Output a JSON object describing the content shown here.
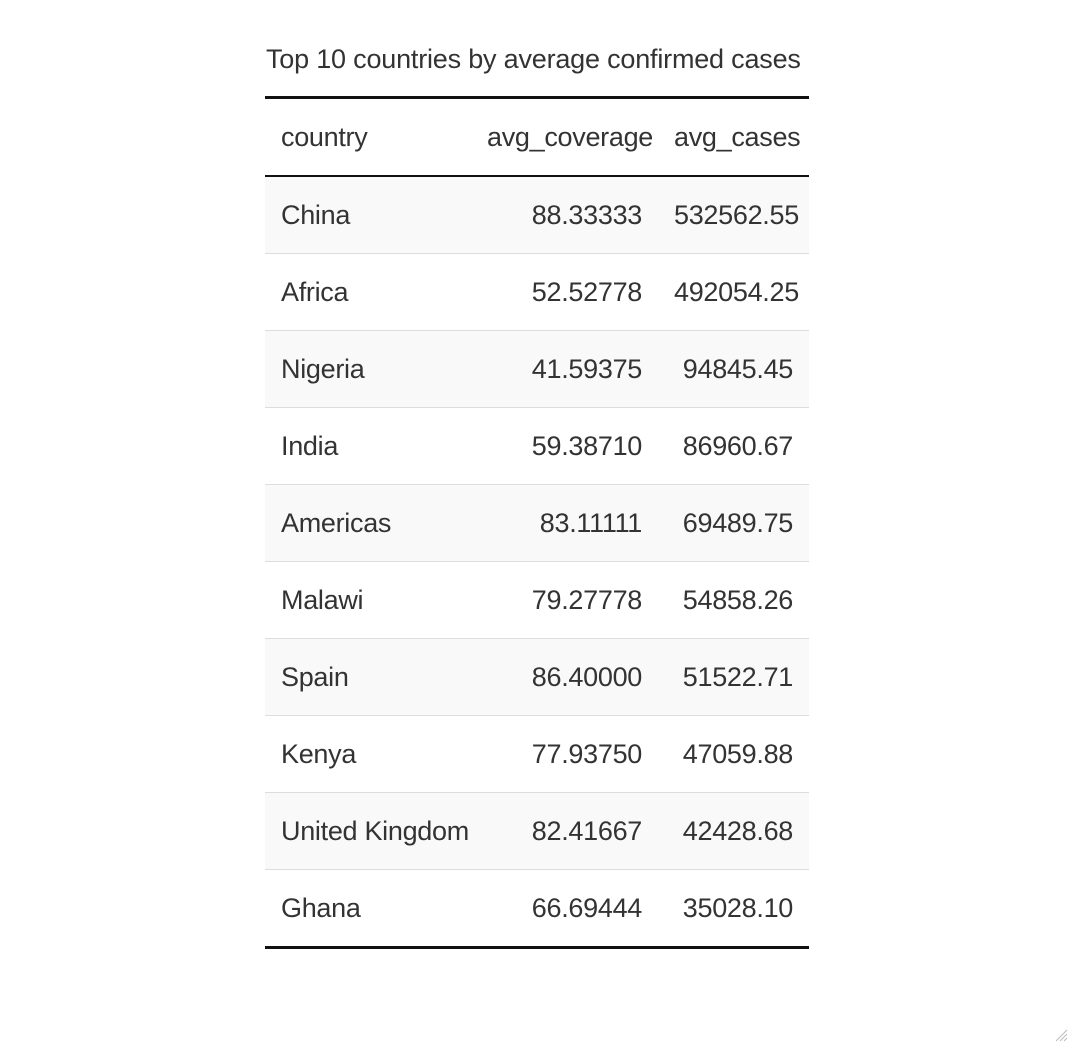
{
  "table": {
    "caption": "Top 10 countries by average confirmed cases",
    "columns": [
      "country",
      "avg_coverage",
      "avg_cases"
    ],
    "rows": [
      [
        "China",
        "88.33333",
        "532562.55"
      ],
      [
        "Africa",
        "52.52778",
        "492054.25"
      ],
      [
        "Nigeria",
        "41.59375",
        "94845.45"
      ],
      [
        "India",
        "59.38710",
        "86960.67"
      ],
      [
        "Americas",
        "83.11111",
        "69489.75"
      ],
      [
        "Malawi",
        "79.27778",
        "54858.26"
      ],
      [
        "Spain",
        "86.40000",
        "51522.71"
      ],
      [
        "Kenya",
        "77.93750",
        "47059.88"
      ],
      [
        "United Kingdom",
        "82.41667",
        "42428.68"
      ],
      [
        "Ghana",
        "66.69444",
        "35028.10"
      ]
    ]
  },
  "colors": {
    "text": "#333333",
    "rule": "#111111",
    "row_divider": "#dddddd",
    "stripe": "#f9f9f9"
  },
  "icons": {
    "resize_grip": "resize-grip-icon"
  }
}
